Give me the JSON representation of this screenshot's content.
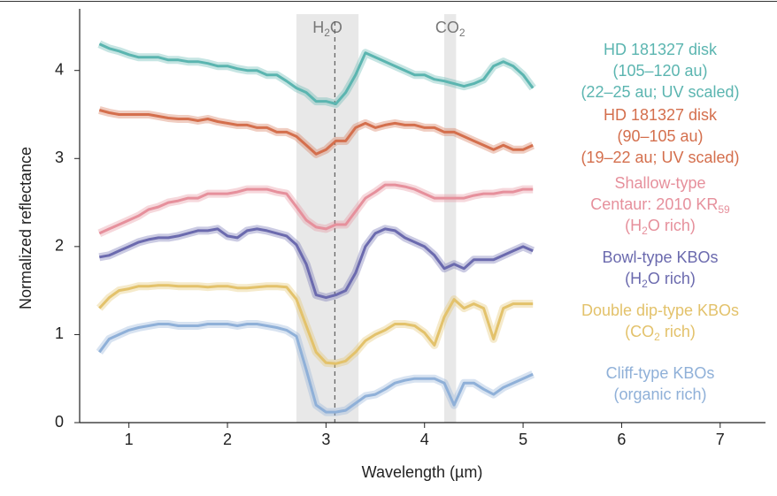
{
  "chart_data": {
    "type": "line",
    "xlabel": "Wavelength (µm)",
    "ylabel": "Normalized reflectance",
    "xlim": [
      0.5,
      7.46
    ],
    "ylim": [
      0,
      4.7
    ],
    "xticks": [
      1,
      2,
      3,
      4,
      5,
      6,
      7
    ],
    "yticks": [
      0,
      1,
      2,
      3,
      4
    ],
    "bands": [
      {
        "label_parts": [
          "H",
          "2",
          "O"
        ],
        "range": [
          2.7,
          3.33
        ]
      },
      {
        "label_parts": [
          "CO",
          "2"
        ],
        "range": [
          4.2,
          4.32
        ]
      }
    ],
    "marker_line": 3.09,
    "x": [
      0.7,
      0.8,
      0.9,
      1.0,
      1.1,
      1.2,
      1.3,
      1.4,
      1.5,
      1.6,
      1.7,
      1.8,
      1.9,
      2.0,
      2.1,
      2.2,
      2.3,
      2.4,
      2.5,
      2.6,
      2.7,
      2.8,
      2.9,
      3.0,
      3.1,
      3.2,
      3.3,
      3.4,
      3.5,
      3.6,
      3.7,
      3.8,
      3.9,
      4.0,
      4.1,
      4.2,
      4.3,
      4.4,
      4.5,
      4.6,
      4.7,
      4.8,
      4.9,
      5.0,
      5.1
    ],
    "series": [
      {
        "name_lines": [
          [
            "HD 181327 disk"
          ],
          [
            "(105–120 au)"
          ],
          [
            "(22–25 au; UV scaled)"
          ]
        ],
        "color": "#5bb5b0",
        "values": [
          4.3,
          4.25,
          4.22,
          4.18,
          4.15,
          4.15,
          4.15,
          4.12,
          4.12,
          4.1,
          4.1,
          4.08,
          4.05,
          4.05,
          4.02,
          4.0,
          4.0,
          3.95,
          3.95,
          3.88,
          3.8,
          3.75,
          3.65,
          3.65,
          3.62,
          3.75,
          3.95,
          4.2,
          4.15,
          4.1,
          4.05,
          4.0,
          3.95,
          3.95,
          3.9,
          3.88,
          3.85,
          3.82,
          3.85,
          3.9,
          4.05,
          4.1,
          4.05,
          3.95,
          3.8
        ]
      },
      {
        "name_lines": [
          [
            "HD 181327 disk"
          ],
          [
            "(90–105 au)"
          ],
          [
            "(19–22 au; UV scaled)"
          ]
        ],
        "color": "#d46f4d",
        "values": [
          3.55,
          3.52,
          3.5,
          3.5,
          3.5,
          3.5,
          3.48,
          3.46,
          3.45,
          3.45,
          3.43,
          3.45,
          3.42,
          3.4,
          3.38,
          3.38,
          3.35,
          3.35,
          3.3,
          3.3,
          3.25,
          3.15,
          3.05,
          3.1,
          3.2,
          3.2,
          3.35,
          3.4,
          3.35,
          3.38,
          3.4,
          3.38,
          3.38,
          3.35,
          3.35,
          3.3,
          3.3,
          3.25,
          3.2,
          3.15,
          3.1,
          3.15,
          3.1,
          3.1,
          3.15
        ]
      },
      {
        "name_lines": [
          [
            "Shallow-type"
          ],
          [
            "Centaur: 2010 KR",
            "59"
          ],
          [
            "(H",
            "2",
            "O rich)"
          ]
        ],
        "color": "#e6909c",
        "values": [
          2.15,
          2.2,
          2.25,
          2.3,
          2.35,
          2.42,
          2.45,
          2.5,
          2.52,
          2.55,
          2.55,
          2.6,
          2.6,
          2.6,
          2.62,
          2.65,
          2.65,
          2.65,
          2.62,
          2.6,
          2.45,
          2.3,
          2.22,
          2.2,
          2.25,
          2.25,
          2.4,
          2.55,
          2.62,
          2.7,
          2.7,
          2.68,
          2.65,
          2.6,
          2.55,
          2.55,
          2.55,
          2.55,
          2.58,
          2.6,
          2.6,
          2.62,
          2.62,
          2.65,
          2.65
        ]
      },
      {
        "name_lines": [
          [
            "Bowl-type KBOs"
          ],
          [
            "(H",
            "2",
            "O rich)"
          ]
        ],
        "color": "#6b6aae",
        "values": [
          1.88,
          1.9,
          1.95,
          2.0,
          2.05,
          2.08,
          2.1,
          2.1,
          2.12,
          2.15,
          2.18,
          2.18,
          2.2,
          2.12,
          2.1,
          2.18,
          2.2,
          2.18,
          2.15,
          2.12,
          2.02,
          1.8,
          1.45,
          1.42,
          1.45,
          1.5,
          1.7,
          2.0,
          2.15,
          2.2,
          2.18,
          2.1,
          2.05,
          2.0,
          1.9,
          1.75,
          1.8,
          1.75,
          1.85,
          1.85,
          1.85,
          1.9,
          1.95,
          2.0,
          1.95
        ]
      },
      {
        "name_lines": [
          [
            "Double dip-type KBOs"
          ],
          [
            "(CO",
            "2",
            " rich)"
          ]
        ],
        "color": "#e3c26b",
        "values": [
          1.3,
          1.42,
          1.5,
          1.52,
          1.55,
          1.55,
          1.56,
          1.56,
          1.55,
          1.55,
          1.55,
          1.54,
          1.55,
          1.55,
          1.53,
          1.53,
          1.54,
          1.55,
          1.55,
          1.54,
          1.4,
          1.1,
          0.8,
          0.68,
          0.67,
          0.7,
          0.8,
          0.93,
          1.0,
          1.05,
          1.12,
          1.12,
          1.1,
          1.02,
          0.88,
          1.2,
          1.4,
          1.3,
          1.35,
          1.3,
          0.95,
          1.3,
          1.35,
          1.35,
          1.35
        ]
      },
      {
        "name_lines": [
          [
            "Cliff-type KBOs"
          ],
          [
            "(organic rich)"
          ]
        ],
        "color": "#8fb0d8",
        "values": [
          0.8,
          0.95,
          1.0,
          1.05,
          1.08,
          1.1,
          1.12,
          1.12,
          1.1,
          1.1,
          1.1,
          1.12,
          1.12,
          1.12,
          1.1,
          1.12,
          1.12,
          1.1,
          1.08,
          1.05,
          0.98,
          0.6,
          0.2,
          0.12,
          0.12,
          0.14,
          0.22,
          0.3,
          0.32,
          0.38,
          0.45,
          0.48,
          0.5,
          0.5,
          0.5,
          0.45,
          0.2,
          0.45,
          0.45,
          0.38,
          0.32,
          0.4,
          0.45,
          0.5,
          0.55
        ]
      }
    ]
  }
}
